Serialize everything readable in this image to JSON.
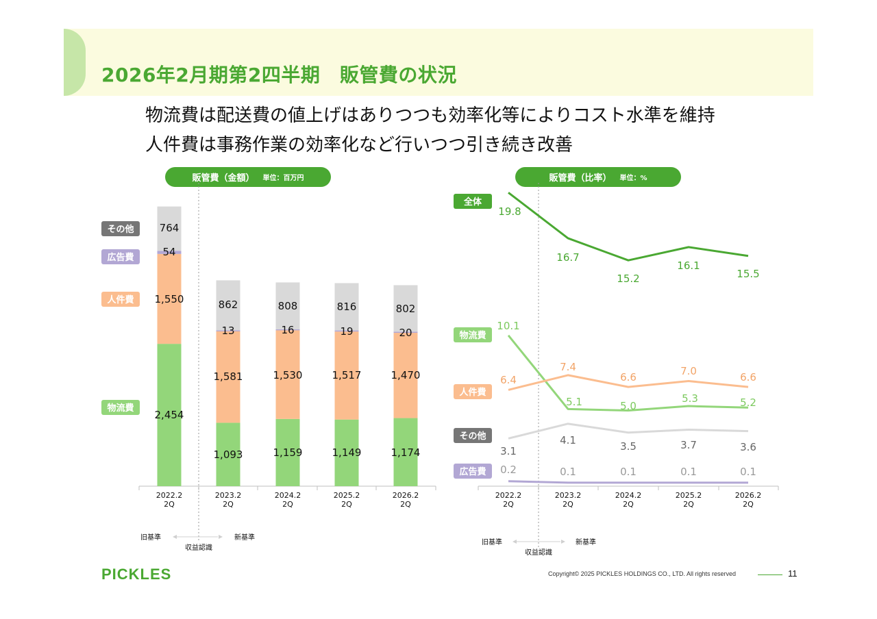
{
  "page": {
    "title": "2026年2月期第2四半期　販管費の状況",
    "subtitle_1": "物流費は配送費の値上げはありつつも効率化等によりコスト水準を維持",
    "subtitle_2": "人件費は事務作業の効率化など行いつつ引き続き改善"
  },
  "left_panel": {
    "title": "販管費（金額）",
    "unit": "単位：百万円"
  },
  "right_panel": {
    "title": "販管費（比率）",
    "unit": "単位：%"
  },
  "standards": {
    "old": "旧基準",
    "new": "新基準",
    "revenue": "収益認識"
  },
  "footer": {
    "logo": "PICKLES",
    "copyright": "Copyright© 2025 PICKLES HOLDINGS CO., LTD. All rights reserved",
    "page_number": "11"
  },
  "colors": {
    "logistics": "#93d67a",
    "personnel": "#fbbd8f",
    "advertising": "#b2a7d4",
    "other": "#d9d9d9",
    "total": "#4aa832",
    "accent": "#4aa832"
  },
  "chart_data": [
    {
      "type": "bar",
      "stacked": true,
      "categories": [
        "2022.2\n2Q",
        "2023.2\n2Q",
        "2024.2\n2Q",
        "2025.2\n2Q",
        "2026.2\n2Q"
      ],
      "series": [
        {
          "name": "物流費",
          "values": [
            2454,
            1093,
            1159,
            1149,
            1174
          ],
          "labels": [
            "2,454",
            "1,093",
            "1,159",
            "1,149",
            "1,174"
          ]
        },
        {
          "name": "人件費",
          "values": [
            1550,
            1581,
            1530,
            1517,
            1470
          ],
          "labels": [
            "1,550",
            "1,581",
            "1,530",
            "1,517",
            "1,470"
          ]
        },
        {
          "name": "広告費",
          "values": [
            54,
            13,
            16,
            19,
            20
          ],
          "labels": [
            "54",
            "13",
            "16",
            "19",
            "20"
          ]
        },
        {
          "name": "その他",
          "values": [
            764,
            862,
            808,
            816,
            802
          ],
          "labels": [
            "764",
            "862",
            "808",
            "816",
            "802"
          ]
        }
      ],
      "legend_placement": "left",
      "ylim": [
        0,
        4900
      ]
    },
    {
      "type": "line",
      "categories": [
        "2022.2\n2Q",
        "2023.2\n2Q",
        "2024.2\n2Q",
        "2025.2\n2Q",
        "2026.2\n2Q"
      ],
      "series": [
        {
          "name": "全体",
          "values": [
            19.8,
            16.7,
            15.2,
            16.1,
            15.5
          ],
          "labels": [
            "19.8",
            "16.7",
            "15.2",
            "16.1",
            "15.5"
          ]
        },
        {
          "name": "物流費",
          "values": [
            10.1,
            5.1,
            5.0,
            5.3,
            5.2
          ],
          "labels": [
            "10.1",
            "5.1",
            "5.0",
            "5.3",
            "5.2"
          ]
        },
        {
          "name": "人件費",
          "values": [
            6.4,
            7.4,
            6.6,
            7.0,
            6.6
          ],
          "labels": [
            "6.4",
            "7.4",
            "6.6",
            "7.0",
            "6.6"
          ]
        },
        {
          "name": "その他",
          "values": [
            3.1,
            4.1,
            3.5,
            3.7,
            3.6
          ],
          "labels": [
            "3.1",
            "4.1",
            "3.5",
            "3.7",
            "3.6"
          ]
        },
        {
          "name": "広告費",
          "values": [
            0.2,
            0.1,
            0.1,
            0.1,
            0.1
          ],
          "labels": [
            "0.2",
            "0.1",
            "0.1",
            "0.1",
            "0.1"
          ]
        }
      ],
      "legend_placement": "left"
    }
  ]
}
